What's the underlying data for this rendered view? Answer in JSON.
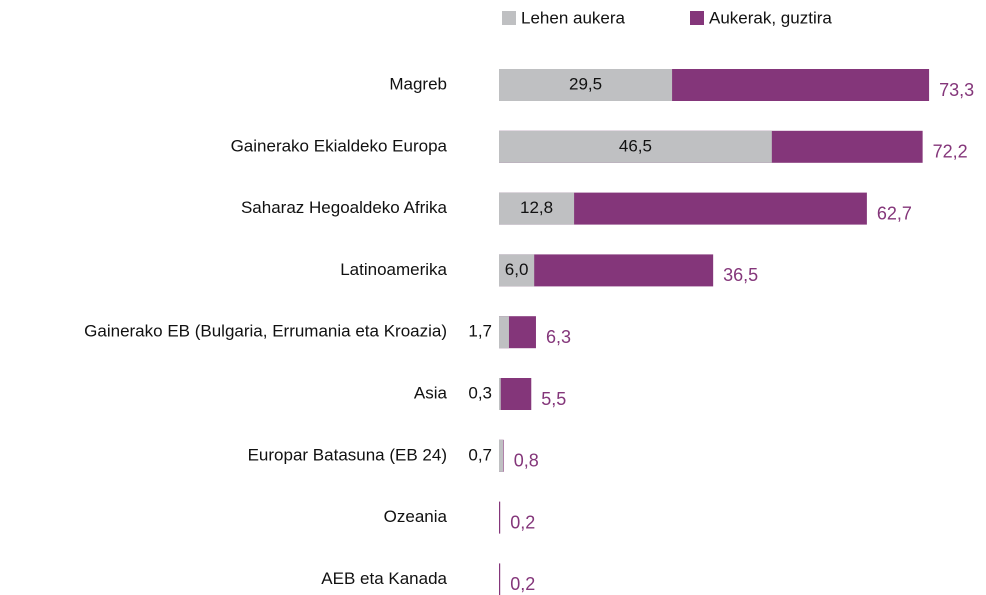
{
  "chart_data": {
    "type": "bar",
    "orientation": "horizontal",
    "overlap": true,
    "categories": [
      "Magreb",
      "Gainerako Ekialdeko Europa",
      "Saharaz Hegoaldeko Afrika",
      "Latinoamerika",
      "Gainerako EB (Bulgaria, Errumania eta Kroazia)",
      "Asia",
      "Europar Batasuna (EB 24)",
      "Ozeania",
      "AEB eta Kanada"
    ],
    "series": [
      {
        "name": "Lehen aukera",
        "color": "#bfc0c2",
        "values": [
          29.5,
          46.5,
          12.8,
          6.0,
          1.7,
          0.3,
          0.7,
          null,
          null
        ],
        "value_labels": [
          "29,5",
          "46,5",
          "12,8",
          "6,0",
          "1,7",
          "0,3",
          "0,7",
          null,
          null
        ]
      },
      {
        "name": "Aukerak, guztira",
        "color": "#84367a",
        "values": [
          73.3,
          72.2,
          62.7,
          36.5,
          6.3,
          5.5,
          0.8,
          0.2,
          0.2
        ],
        "value_labels": [
          "73,3",
          "72,2",
          "62,7",
          "36,5",
          "6,3",
          "5,5",
          "0,8",
          "0,2",
          "0,2"
        ]
      }
    ],
    "xlim": [
      0,
      83
    ],
    "legend": "top"
  }
}
